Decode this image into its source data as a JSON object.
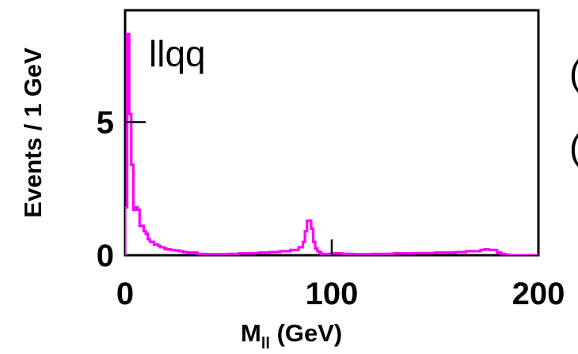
{
  "chart_data": {
    "type": "line",
    "panel_label": "llqq",
    "xlabel_main": "M",
    "xlabel_sub": "ll",
    "xlabel_unit": " (GeV)",
    "ylabel": "Events / 1 GeV",
    "xlim": [
      0,
      200
    ],
    "ylim": [
      0,
      9.2
    ],
    "x_ticks": [
      0,
      100,
      200
    ],
    "x_tick_labels": [
      "0",
      "100",
      "200"
    ],
    "y_ticks": [
      0,
      5
    ],
    "y_tick_labels": [
      "0",
      "5"
    ],
    "grid": false,
    "line_color": "#ff00ff",
    "series": [
      {
        "x": [
          0,
          1,
          2,
          3,
          4,
          5,
          6,
          7,
          8,
          9,
          10,
          11,
          12,
          13,
          14,
          15,
          16,
          17,
          18,
          19,
          20,
          22,
          24,
          26,
          28,
          30,
          35,
          40,
          45,
          50,
          55,
          60,
          65,
          70,
          75,
          80,
          84,
          86,
          87,
          88,
          89,
          90,
          91,
          92,
          93,
          94,
          95,
          96,
          98,
          100,
          105,
          110,
          120,
          130,
          140,
          150,
          155,
          160,
          165,
          170,
          172,
          174,
          176,
          178,
          180,
          182,
          184,
          186,
          188,
          190,
          195,
          200
        ],
        "y": [
          1.8,
          8.3,
          5.3,
          3.4,
          1.7,
          1.8,
          1.7,
          1.1,
          1.1,
          0.9,
          0.8,
          0.6,
          0.5,
          0.5,
          0.4,
          0.4,
          0.35,
          0.3,
          0.3,
          0.25,
          0.22,
          0.2,
          0.18,
          0.15,
          0.12,
          0.1,
          0.05,
          0.04,
          0.04,
          0.05,
          0.07,
          0.08,
          0.1,
          0.12,
          0.15,
          0.2,
          0.3,
          0.5,
          0.9,
          1.3,
          1.3,
          1.0,
          0.5,
          0.25,
          0.15,
          0.1,
          0.05,
          0.04,
          0.05,
          0.07,
          0.05,
          0.04,
          0.05,
          0.07,
          0.08,
          0.1,
          0.1,
          0.12,
          0.15,
          0.15,
          0.2,
          0.22,
          0.2,
          0.2,
          0.1,
          0.05,
          0.02,
          0.0,
          0.0,
          0.0,
          0.0,
          0.0
        ]
      }
    ]
  },
  "clipped_text": [
    "(",
    "("
  ]
}
